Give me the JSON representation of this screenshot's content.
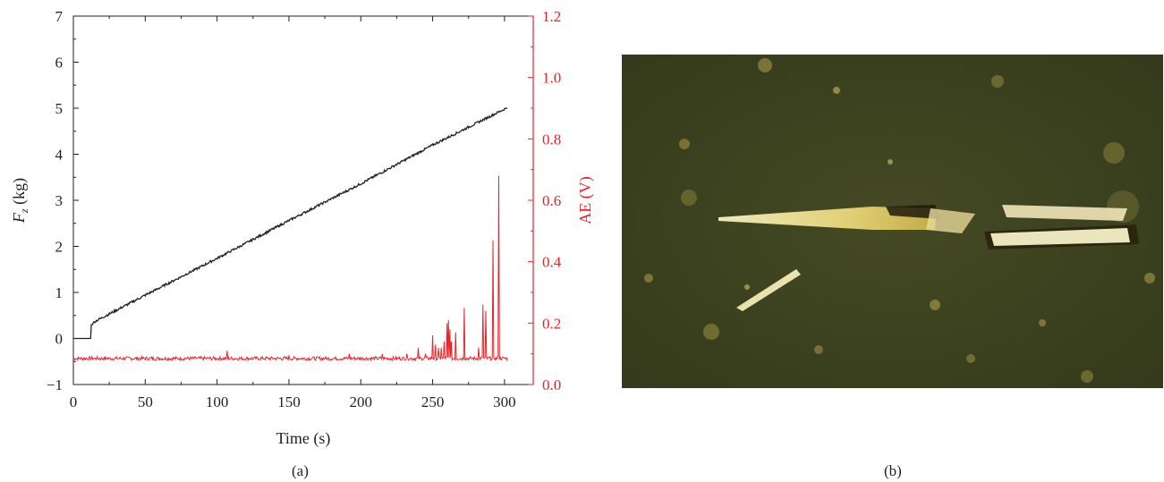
{
  "chart_data": {
    "type": "line",
    "x": {
      "label": "Time (s)",
      "range": [
        0,
        320
      ],
      "ticks": [
        0,
        50,
        100,
        150,
        200,
        250,
        300
      ]
    },
    "y_left": {
      "label_main": "F",
      "label_sub": "z",
      "label_unit": " (kg)",
      "range": [
        -1,
        7
      ],
      "ticks": [
        -1,
        0,
        1,
        2,
        3,
        4,
        5,
        6,
        7
      ],
      "tick_labels": [
        "−1",
        "0",
        "1",
        "2",
        "3",
        "4",
        "5",
        "6",
        "7"
      ]
    },
    "y_right": {
      "label": "AE (V)",
      "range": [
        0.0,
        1.2
      ],
      "ticks": [
        0.0,
        0.2,
        0.4,
        0.6,
        0.8,
        1.0,
        1.2
      ],
      "tick_labels": [
        "0.0",
        "0.2",
        "0.4",
        "0.6",
        "0.8",
        "1.0",
        "1.2"
      ],
      "color": "#e8232a"
    },
    "series": [
      {
        "axis": "left",
        "color": "#231f20",
        "points": [
          [
            0,
            0.0
          ],
          [
            12,
            0.0
          ],
          [
            12.5,
            0.3
          ],
          [
            15,
            0.37
          ],
          [
            50,
            0.94
          ],
          [
            100,
            1.74
          ],
          [
            150,
            2.56
          ],
          [
            200,
            3.36
          ],
          [
            250,
            4.2
          ],
          [
            300,
            4.98
          ],
          [
            302,
            5.02
          ]
        ]
      },
      {
        "axis": "right",
        "color": "#e8232a",
        "baseline": 0.085,
        "x_range": [
          0,
          302
        ],
        "spikes": [
          [
            107,
            0.11
          ],
          [
            150,
            0.095
          ],
          [
            192,
            0.1
          ],
          [
            215,
            0.1
          ],
          [
            232,
            0.1
          ],
          [
            240,
            0.12
          ],
          [
            245,
            0.1
          ],
          [
            250,
            0.16
          ],
          [
            252,
            0.13
          ],
          [
            254,
            0.12
          ],
          [
            256,
            0.12
          ],
          [
            258,
            0.14
          ],
          [
            260,
            0.2
          ],
          [
            261,
            0.21
          ],
          [
            262,
            0.18
          ],
          [
            263,
            0.14
          ],
          [
            266,
            0.17
          ],
          [
            272,
            0.25
          ],
          [
            282,
            0.12
          ],
          [
            285,
            0.26
          ],
          [
            287,
            0.24
          ],
          [
            292,
            0.47
          ],
          [
            296,
            0.68
          ]
        ]
      }
    ]
  },
  "captions": {
    "a": "(a)",
    "b": "(b)"
  },
  "photo": {
    "background_color": "#3d4220",
    "highlight_color": "#f2eab6"
  }
}
